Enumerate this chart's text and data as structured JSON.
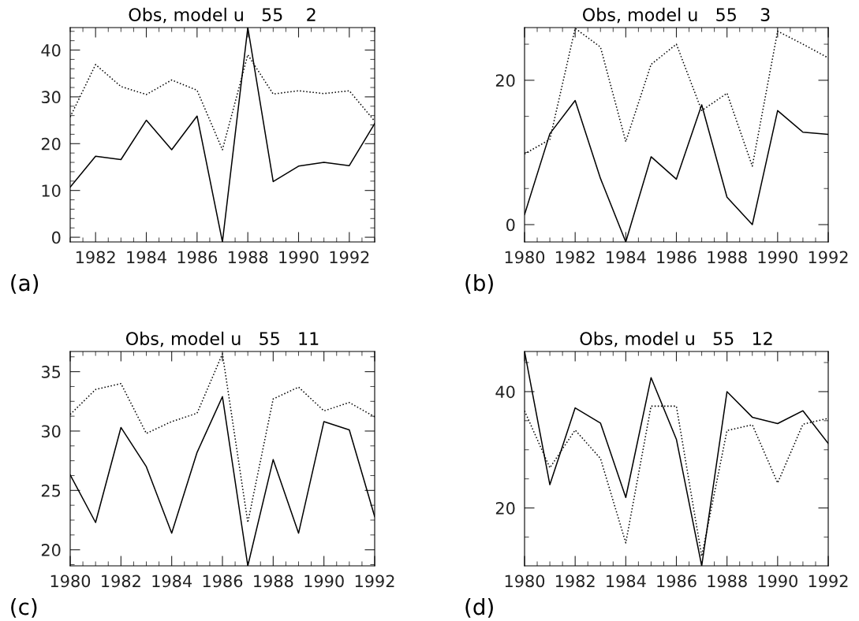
{
  "chart_data": [
    {
      "type": "line",
      "title": "Obs, model u   55    2",
      "annotations": [
        "(a)"
      ],
      "x": [
        1981,
        1982,
        1983,
        1984,
        1985,
        1986,
        1987,
        1988,
        1989,
        1990,
        1991,
        1992,
        1993
      ],
      "xlim": [
        1981,
        1993
      ],
      "xticks": [
        1982,
        1984,
        1986,
        1988,
        1990,
        1992
      ],
      "ylim": [
        -1,
        44.8
      ],
      "yticks": [
        0,
        10,
        20,
        30,
        40
      ],
      "series": [
        {
          "color": "#000000",
          "line_style": "solid",
          "values": [
            10.7,
            17.3,
            16.6,
            25.0,
            18.7,
            25.9,
            -1,
            44.8,
            11.9,
            15.2,
            16.0,
            15.3,
            24.3
          ]
        },
        {
          "color": "#000000",
          "line_style": "dotted",
          "values": [
            25.7,
            36.9,
            32.2,
            30.5,
            33.6,
            31.4,
            18.7,
            39.0,
            30.6,
            31.3,
            30.7,
            31.3,
            24.8
          ]
        }
      ]
    },
    {
      "type": "line",
      "title": "Obs, model u   55    3",
      "annotations": [
        "(b)"
      ],
      "x": [
        1980,
        1981,
        1982,
        1983,
        1984,
        1985,
        1986,
        1987,
        1988,
        1989,
        1990,
        1991,
        1992
      ],
      "xlim": [
        1980,
        1992
      ],
      "xticks": [
        1980,
        1982,
        1984,
        1986,
        1988,
        1990,
        1992
      ],
      "ylim": [
        -2.4,
        27.3
      ],
      "yticks": [
        0,
        20
      ],
      "series": [
        {
          "color": "#000000",
          "line_style": "solid",
          "values": [
            1.4,
            12.6,
            17.2,
            6.4,
            -2.4,
            9.4,
            6.3,
            16.6,
            3.8,
            0.0,
            15.8,
            12.8,
            12.5
          ]
        },
        {
          "color": "#000000",
          "line_style": "dotted",
          "values": [
            9.8,
            11.8,
            27.2,
            24.6,
            11.5,
            22.2,
            25.0,
            15.8,
            18.2,
            8.1,
            26.8,
            25.0,
            23.1
          ]
        }
      ]
    },
    {
      "type": "line",
      "title": "Obs, model u   55   11",
      "annotations": [
        "(c)"
      ],
      "x": [
        1980,
        1981,
        1982,
        1983,
        1984,
        1985,
        1986,
        1987,
        1988,
        1989,
        1990,
        1991,
        1992
      ],
      "xlim": [
        1980,
        1992
      ],
      "xticks": [
        1980,
        1982,
        1984,
        1986,
        1988,
        1990,
        1992
      ],
      "ylim": [
        18.65,
        36.7
      ],
      "yticks": [
        20,
        25,
        30,
        35
      ],
      "series": [
        {
          "color": "#000000",
          "line_style": "solid",
          "values": [
            26.3,
            22.3,
            30.3,
            27.0,
            21.4,
            28.2,
            32.9,
            18.65,
            27.6,
            21.4,
            30.8,
            30.1,
            22.8
          ]
        },
        {
          "color": "#000000",
          "line_style": "dotted",
          "values": [
            31.4,
            33.5,
            34.0,
            29.8,
            30.8,
            31.5,
            36.5,
            22.3,
            32.7,
            33.7,
            31.7,
            32.4,
            31.2
          ]
        }
      ]
    },
    {
      "type": "line",
      "title": "Obs, model u   55   12",
      "annotations": [
        "(d)"
      ],
      "x": [
        1980,
        1981,
        1982,
        1983,
        1984,
        1985,
        1986,
        1987,
        1988,
        1989,
        1990,
        1991,
        1992
      ],
      "xlim": [
        1980,
        1992
      ],
      "xticks": [
        1980,
        1982,
        1984,
        1986,
        1988,
        1990,
        1992
      ],
      "ylim": [
        10.05,
        46.9
      ],
      "yticks": [
        20,
        40
      ],
      "series": [
        {
          "color": "#000000",
          "line_style": "solid",
          "values": [
            46.9,
            24.0,
            37.2,
            34.6,
            21.8,
            42.4,
            31.8,
            10.05,
            40.0,
            35.6,
            34.5,
            36.7,
            31.1
          ]
        },
        {
          "color": "#000000",
          "line_style": "dotted",
          "values": [
            36.7,
            26.9,
            33.4,
            28.5,
            14.0,
            37.5,
            37.5,
            11.7,
            33.3,
            34.3,
            24.3,
            34.4,
            35.4
          ]
        }
      ]
    }
  ]
}
